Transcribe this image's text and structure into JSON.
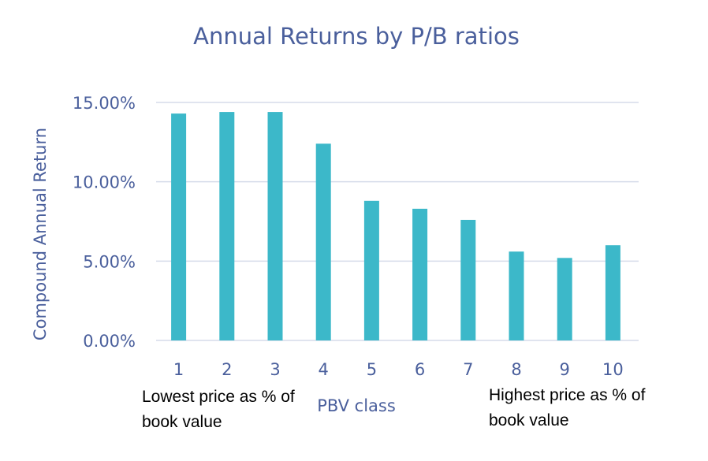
{
  "chart_data": {
    "type": "bar",
    "title": "Annual Returns by P/B ratios",
    "xlabel": "PBV class",
    "ylabel": "Compound Annual Return",
    "categories": [
      "1",
      "2",
      "3",
      "4",
      "5",
      "6",
      "7",
      "8",
      "9",
      "10"
    ],
    "values": [
      14.3,
      14.4,
      14.4,
      12.4,
      8.8,
      8.3,
      7.6,
      5.6,
      5.2,
      6.0
    ],
    "ylim": [
      0,
      15
    ],
    "yticks": [
      0,
      5,
      10,
      15
    ],
    "ytick_labels": [
      "0.00%",
      "5.00%",
      "10.00%",
      "15.00%"
    ],
    "grid": true,
    "colors": {
      "bar": "#3cb8c9",
      "text": "#4a5f9c",
      "grid": "#d6dcea"
    }
  },
  "annotations": {
    "left": [
      "Lowest price as % of",
      "book value"
    ],
    "right": [
      "Highest price as % of",
      "book value"
    ]
  }
}
